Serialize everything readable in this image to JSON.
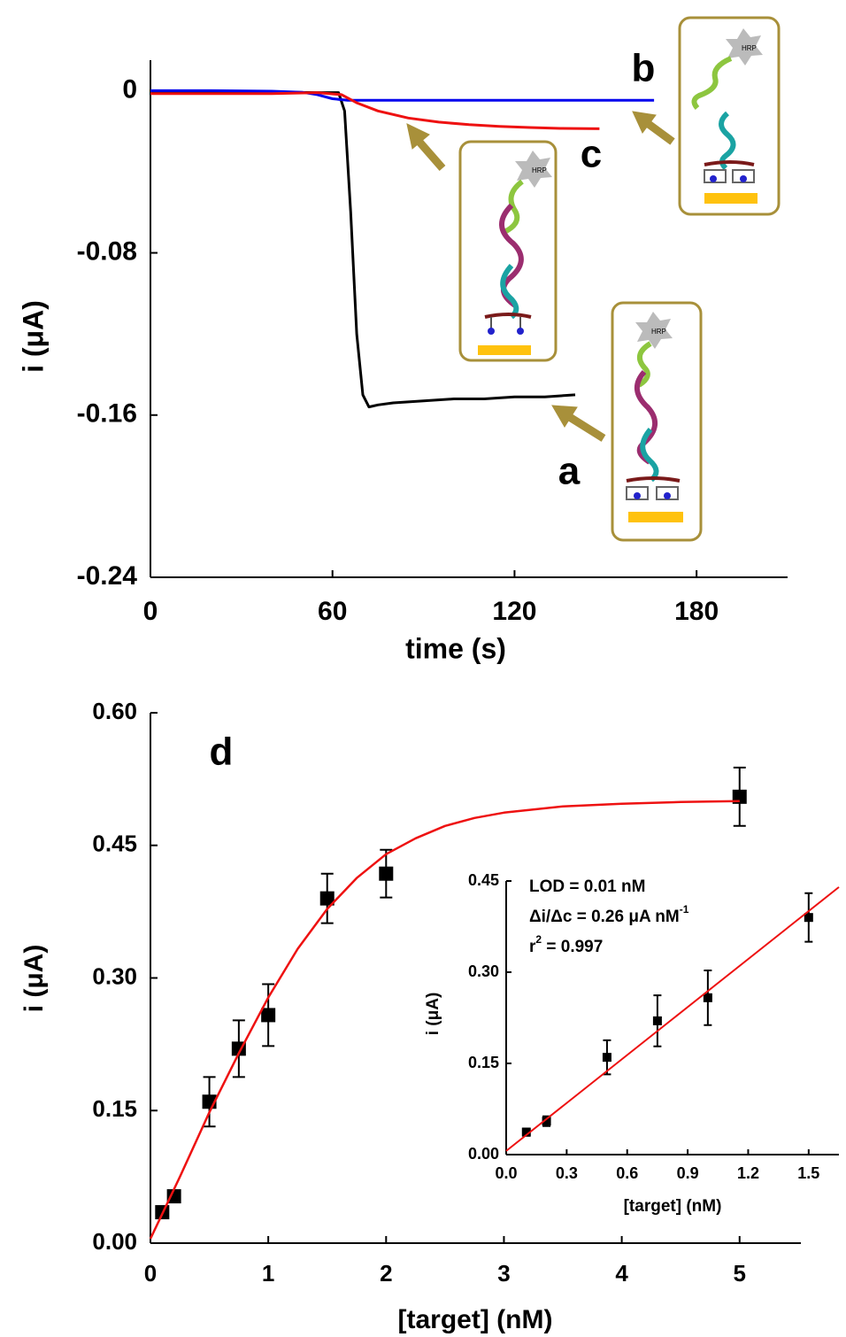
{
  "chart_data": [
    {
      "type": "line",
      "xlabel": "time (s)",
      "ylabel": "i (μA)",
      "xlim": [
        0,
        210
      ],
      "ylim": [
        -0.24,
        0.015
      ],
      "xticks": [
        0,
        60,
        120,
        180
      ],
      "yticks": [
        0,
        -0.08,
        -0.16,
        -0.24
      ],
      "series": [
        {
          "name": "a",
          "color": "#000000",
          "x": [
            0,
            20,
            40,
            55,
            62,
            64,
            66,
            68,
            70,
            72,
            75,
            80,
            90,
            100,
            110,
            120,
            130,
            140
          ],
          "values": [
            -0.0005,
            -0.0005,
            -0.0007,
            -0.001,
            -0.001,
            -0.01,
            -0.06,
            -0.12,
            -0.15,
            -0.156,
            -0.155,
            -0.154,
            -0.153,
            -0.152,
            -0.152,
            -0.151,
            -0.151,
            -0.15
          ]
        },
        {
          "name": "b",
          "color": "#0000ee",
          "x": [
            0,
            20,
            40,
            50,
            55,
            60,
            65,
            80,
            100,
            120,
            140,
            166
          ],
          "values": [
            0,
            0,
            -0.0003,
            -0.0008,
            -0.002,
            -0.004,
            -0.0048,
            -0.0048,
            -0.0048,
            -0.0048,
            -0.0048,
            -0.0048
          ]
        },
        {
          "name": "c",
          "color": "#ee1111",
          "x": [
            0,
            20,
            40,
            55,
            63,
            68,
            75,
            85,
            95,
            105,
            115,
            125,
            135,
            148
          ],
          "values": [
            -0.0015,
            -0.0015,
            -0.0015,
            -0.001,
            -0.002,
            -0.006,
            -0.01,
            -0.0135,
            -0.0155,
            -0.0168,
            -0.0176,
            -0.0182,
            -0.0186,
            -0.0188
          ]
        }
      ],
      "schematic_text": "HRP"
    },
    {
      "type": "scatter",
      "xlabel": "[target] (nM)",
      "ylabel": "i (μA)",
      "panel": "d",
      "xlim": [
        0,
        5.52
      ],
      "ylim": [
        0,
        0.6
      ],
      "xticks": [
        0,
        1,
        2,
        3,
        4,
        5
      ],
      "yticks": [
        {
          "value": 0,
          "label": "0.00"
        },
        0.15,
        {
          "value": 0.3,
          "label": "0.30"
        },
        0.45,
        {
          "value": 0.6,
          "label": "0.60"
        }
      ],
      "series": [
        {
          "type": "points",
          "color": "#000000",
          "x": [
            0.1,
            0.2,
            0.5,
            0.75,
            1.0,
            1.5,
            2.0,
            5.0
          ],
          "values": [
            0.035,
            0.053,
            0.16,
            0.22,
            0.258,
            0.39,
            0.418,
            0.505
          ],
          "errors": [
            0.005,
            0.006,
            0.028,
            0.032,
            0.035,
            0.028,
            0.027,
            0.033
          ]
        },
        {
          "type": "fit",
          "color": "#ee1111",
          "x": [
            0,
            0.25,
            0.5,
            0.75,
            1.0,
            1.25,
            1.5,
            1.75,
            2.0,
            2.25,
            2.5,
            2.75,
            3.0,
            3.5,
            4.0,
            4.5,
            5.0
          ],
          "values": [
            0.005,
            0.075,
            0.148,
            0.215,
            0.278,
            0.333,
            0.378,
            0.413,
            0.44,
            0.458,
            0.472,
            0.481,
            0.487,
            0.494,
            0.497,
            0.499,
            0.5
          ]
        }
      ]
    },
    {
      "type": "scatter",
      "xlabel": "[target] (nM)",
      "ylabel": "i (μA)",
      "xlim": [
        0,
        1.65
      ],
      "ylim": [
        0,
        0.45
      ],
      "xticks": [
        {
          "value": 0,
          "label": "0.0"
        },
        0.3,
        0.6,
        0.9,
        1.2,
        1.5
      ],
      "yticks": [
        {
          "value": 0,
          "label": "0.00"
        },
        0.15,
        {
          "value": 0.3,
          "label": "0.30"
        },
        0.45
      ],
      "annotations": [
        {
          "text": "LOD = 0.01 nM"
        },
        {
          "text": "Δi/Δc = 0.26 μA nM",
          "sup": "-1"
        },
        {
          "text": " = 0.997",
          "lead": "r",
          "sup": "2"
        }
      ],
      "series": [
        {
          "type": "points",
          "color": "#000000",
          "x": [
            0.1,
            0.2,
            0.5,
            0.75,
            1.0,
            1.5
          ],
          "values": [
            0.037,
            0.055,
            0.16,
            0.22,
            0.258,
            0.39
          ],
          "errors": [
            0.006,
            0.008,
            0.028,
            0.042,
            0.045,
            0.04
          ]
        },
        {
          "type": "fit",
          "color": "#ee1111",
          "x": [
            0,
            1.65
          ],
          "values": [
            0.006,
            0.44
          ]
        }
      ]
    }
  ]
}
